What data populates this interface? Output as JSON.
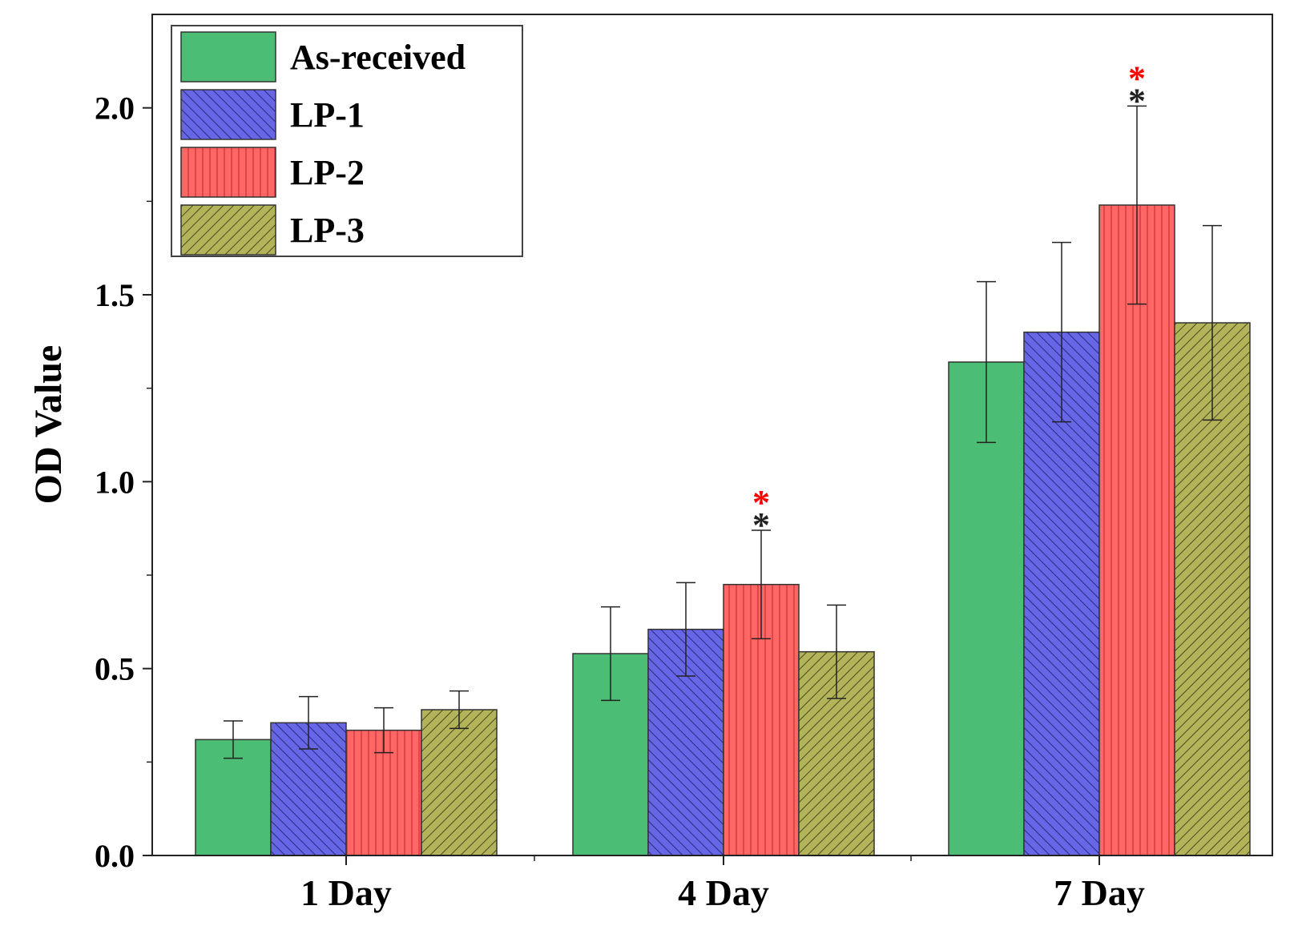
{
  "chart_data": {
    "type": "bar",
    "title": "",
    "xlabel": "",
    "ylabel": "OD Value",
    "ylim": [
      0,
      2.25
    ],
    "yticks": [
      "0.0",
      "0.5",
      "1.0",
      "1.5",
      "2.0"
    ],
    "categories": [
      "1 Day",
      "4 Day",
      "7 Day"
    ],
    "legend_position": "top-left",
    "series": [
      {
        "name": "As-received",
        "color": "#4bbd74",
        "pattern": "solid",
        "values": [
          0.31,
          0.54,
          1.32
        ],
        "errors": [
          0.05,
          0.125,
          0.215
        ]
      },
      {
        "name": "LP-1",
        "color": "#6666e6",
        "pattern": "diagonal-hatch",
        "values": [
          0.355,
          0.605,
          1.4
        ],
        "errors": [
          0.07,
          0.125,
          0.24
        ]
      },
      {
        "name": "LP-2",
        "color": "#ff6666",
        "pattern": "vertical-lines",
        "values": [
          0.335,
          0.725,
          1.74
        ],
        "errors": [
          0.06,
          0.145,
          0.265
        ]
      },
      {
        "name": "LP-3",
        "color": "#b3b35a",
        "pattern": "back-diagonal-hatch",
        "values": [
          0.39,
          0.545,
          1.425
        ],
        "errors": [
          0.05,
          0.125,
          0.26
        ]
      }
    ],
    "significance": [
      {
        "category": "4 Day",
        "series": "LP-2",
        "marks": [
          {
            "symbol": "*",
            "color": "#ff0000"
          },
          {
            "symbol": "*",
            "color": "#222222"
          }
        ]
      },
      {
        "category": "7 Day",
        "series": "LP-2",
        "marks": [
          {
            "symbol": "*",
            "color": "#ff0000"
          },
          {
            "symbol": "*",
            "color": "#222222"
          }
        ]
      }
    ]
  }
}
